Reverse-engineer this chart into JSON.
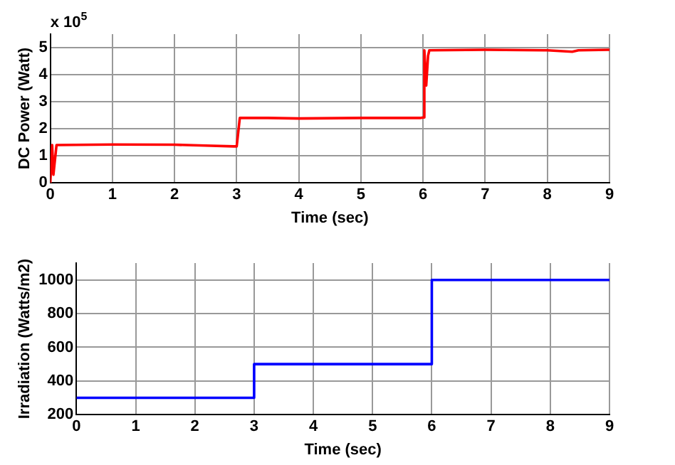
{
  "chart_data": [
    {
      "type": "line",
      "xlabel": "Time (sec)",
      "ylabel": "DC Power (Watt)",
      "annotations": [
        "x 10$^{5}$"
      ],
      "xlim": [
        0,
        9
      ],
      "xticks": [
        0,
        1,
        2,
        3,
        4,
        5,
        6,
        7,
        8,
        9
      ],
      "ylim": [
        0,
        5.5
      ],
      "yticks": [
        0,
        1,
        2,
        3,
        4,
        5
      ],
      "grid": true,
      "series": [
        {
          "color": "#ff0000",
          "x": [
            0,
            0.03,
            0.05,
            0.1,
            1,
            2,
            2.5,
            2.95,
            3,
            3.05,
            3.5,
            4,
            5,
            5.95,
            6,
            6.02,
            6.05,
            6.08,
            6.1,
            7,
            8,
            8.4,
            8.5,
            9
          ],
          "values": [
            0,
            1.4,
            0.3,
            1.4,
            1.42,
            1.41,
            1.38,
            1.35,
            1.35,
            2.4,
            2.4,
            2.38,
            2.4,
            2.4,
            2.42,
            4.9,
            3.6,
            4.7,
            4.9,
            4.92,
            4.9,
            4.85,
            4.9,
            4.92
          ]
        }
      ]
    },
    {
      "type": "step",
      "xlabel": "Time (sec)",
      "ylabel": "Irradiation (Watts/m2)",
      "xlim": [
        0,
        9
      ],
      "xticks": [
        0,
        1,
        2,
        3,
        4,
        5,
        6,
        7,
        8,
        9
      ],
      "ylim": [
        200,
        1100
      ],
      "yticks": [
        200,
        400,
        600,
        800,
        1000
      ],
      "grid": true,
      "series": [
        {
          "color": "#0000ff",
          "x": [
            0,
            3,
            6,
            9
          ],
          "values": [
            300,
            500,
            1000,
            1000
          ]
        }
      ]
    }
  ]
}
